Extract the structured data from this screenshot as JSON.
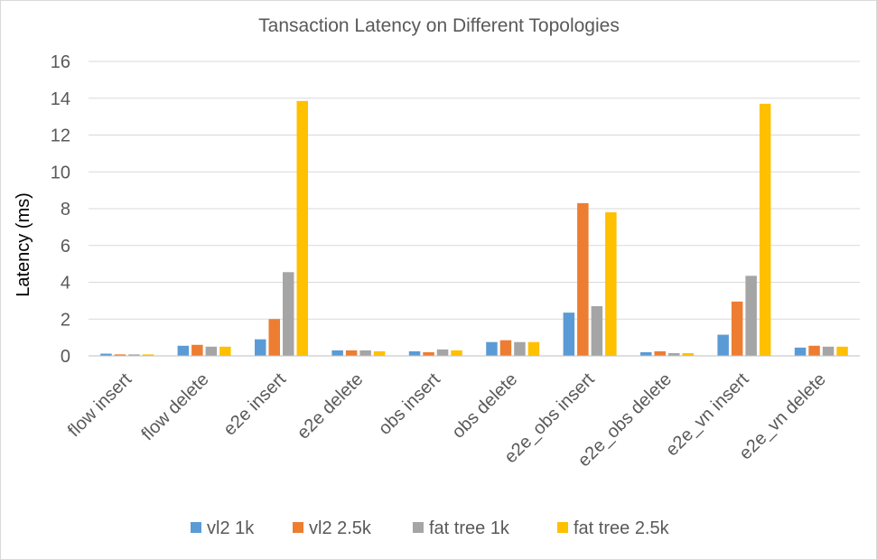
{
  "chart_data": {
    "type": "bar",
    "title": "Tansaction  Latency on Different Topologies",
    "xlabel": "",
    "ylabel": "Latency (ms)",
    "ylim": [
      0,
      16
    ],
    "yticks": [
      "0",
      "2",
      "4",
      "6",
      "8",
      "10",
      "12",
      "14",
      "16"
    ],
    "grid": true,
    "legend_position": "bottom",
    "categories": [
      "flow  insert",
      "flow  delete",
      "e2e insert",
      "e2e  delete",
      "obs insert",
      "obs delete",
      "e2e_obs insert",
      "e2e_obs delete",
      "e2e_vn insert",
      "e2e_vn delete"
    ],
    "series": [
      {
        "name": "vl2 1k",
        "color": "#5b9bd5",
        "values": [
          0.12,
          0.55,
          0.9,
          0.3,
          0.25,
          0.75,
          2.35,
          0.2,
          1.15,
          0.45
        ]
      },
      {
        "name": "vl2 2.5k",
        "color": "#ed7d31",
        "values": [
          0.08,
          0.6,
          2.0,
          0.3,
          0.2,
          0.85,
          8.3,
          0.25,
          2.95,
          0.55
        ]
      },
      {
        "name": "fat tree 1k",
        "color": "#a5a5a5",
        "values": [
          0.08,
          0.5,
          4.55,
          0.3,
          0.35,
          0.75,
          2.7,
          0.15,
          4.35,
          0.5
        ]
      },
      {
        "name": "fat tree 2.5k",
        "color": "#ffc000",
        "values": [
          0.08,
          0.5,
          13.85,
          0.25,
          0.3,
          0.75,
          7.8,
          0.15,
          13.7,
          0.5
        ]
      }
    ]
  }
}
